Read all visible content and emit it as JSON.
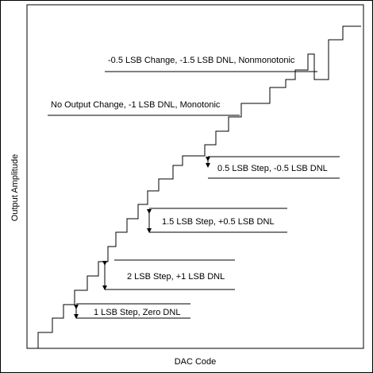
{
  "axes": {
    "x_label": "DAC Code",
    "y_label": "Output Amplitude"
  },
  "annotations": [
    {
      "id": "zero-dnl",
      "text": "1 LSB Step, Zero DNL",
      "step_lsb": 1,
      "dnl_lsb": 0
    },
    {
      "id": "plus1-dnl",
      "text": "2 LSB Step, +1 LSB DNL",
      "step_lsb": 2,
      "dnl_lsb": 1
    },
    {
      "id": "plus05-dnl",
      "text": "1.5 LSB Step, +0.5 LSB DNL",
      "step_lsb": 1.5,
      "dnl_lsb": 0.5
    },
    {
      "id": "minus05-dnl",
      "text": "0.5 LSB Step, -0.5 LSB DNL",
      "step_lsb": 0.5,
      "dnl_lsb": -0.5
    },
    {
      "id": "no-change",
      "text": "No Output Change, -1 LSB DNL, Monotonic",
      "step_lsb": 0,
      "dnl_lsb": -1
    },
    {
      "id": "nonmonotonic",
      "text": "-0.5 LSB Change, -1.5 LSB DNL, Nonmonotonic",
      "step_lsb": -0.5,
      "dnl_lsb": -1.5
    }
  ],
  "colors": {
    "line": "#000000",
    "background": "#ffffff"
  }
}
